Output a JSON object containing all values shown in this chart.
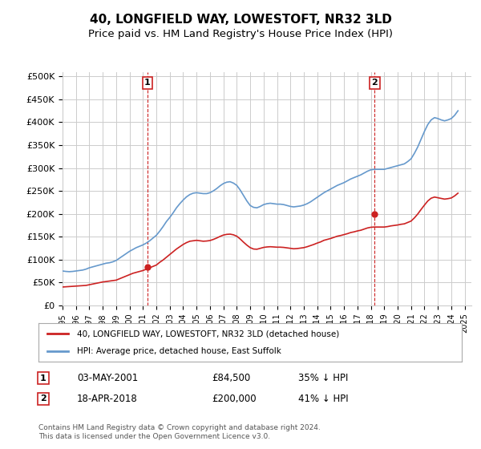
{
  "title": "40, LONGFIELD WAY, LOWESTOFT, NR32 3LD",
  "subtitle": "Price paid vs. HM Land Registry's House Price Index (HPI)",
  "title_fontsize": 11,
  "subtitle_fontsize": 9.5,
  "ylabel_ticks": [
    "£0",
    "£50K",
    "£100K",
    "£150K",
    "£200K",
    "£250K",
    "£300K",
    "£350K",
    "£400K",
    "£450K",
    "£500K"
  ],
  "ytick_values": [
    0,
    50000,
    100000,
    150000,
    200000,
    250000,
    300000,
    350000,
    400000,
    450000,
    500000
  ],
  "ylim": [
    0,
    510000
  ],
  "xlim_start": 1995.0,
  "xlim_end": 2025.5,
  "hpi_color": "#6699cc",
  "price_color": "#cc2222",
  "dashed_color": "#cc2222",
  "bg_color": "#ffffff",
  "grid_color": "#cccccc",
  "marker1_x": 2001.34,
  "marker1_y": 84500,
  "marker2_x": 2018.29,
  "marker2_y": 200000,
  "legend_label1": "40, LONGFIELD WAY, LOWESTOFT, NR32 3LD (detached house)",
  "legend_label2": "HPI: Average price, detached house, East Suffolk",
  "annotation1_label": "1",
  "annotation2_label": "2",
  "table_row1": [
    "1",
    "03-MAY-2001",
    "£84,500",
    "35% ↓ HPI"
  ],
  "table_row2": [
    "2",
    "18-APR-2018",
    "£200,000",
    "41% ↓ HPI"
  ],
  "footer": "Contains HM Land Registry data © Crown copyright and database right 2024.\nThis data is licensed under the Open Government Licence v3.0.",
  "hpi_data": {
    "years": [
      1995.0,
      1995.25,
      1995.5,
      1995.75,
      1996.0,
      1996.25,
      1996.5,
      1996.75,
      1997.0,
      1997.25,
      1997.5,
      1997.75,
      1998.0,
      1998.25,
      1998.5,
      1998.75,
      1999.0,
      1999.25,
      1999.5,
      1999.75,
      2000.0,
      2000.25,
      2000.5,
      2000.75,
      2001.0,
      2001.25,
      2001.5,
      2001.75,
      2002.0,
      2002.25,
      2002.5,
      2002.75,
      2003.0,
      2003.25,
      2003.5,
      2003.75,
      2004.0,
      2004.25,
      2004.5,
      2004.75,
      2005.0,
      2005.25,
      2005.5,
      2005.75,
      2006.0,
      2006.25,
      2006.5,
      2006.75,
      2007.0,
      2007.25,
      2007.5,
      2007.75,
      2008.0,
      2008.25,
      2008.5,
      2008.75,
      2009.0,
      2009.25,
      2009.5,
      2009.75,
      2010.0,
      2010.25,
      2010.5,
      2010.75,
      2011.0,
      2011.25,
      2011.5,
      2011.75,
      2012.0,
      2012.25,
      2012.5,
      2012.75,
      2013.0,
      2013.25,
      2013.5,
      2013.75,
      2014.0,
      2014.25,
      2014.5,
      2014.75,
      2015.0,
      2015.25,
      2015.5,
      2015.75,
      2016.0,
      2016.25,
      2016.5,
      2016.75,
      2017.0,
      2017.25,
      2017.5,
      2017.75,
      2018.0,
      2018.25,
      2018.5,
      2018.75,
      2019.0,
      2019.25,
      2019.5,
      2019.75,
      2020.0,
      2020.25,
      2020.5,
      2020.75,
      2021.0,
      2021.25,
      2021.5,
      2021.75,
      2022.0,
      2022.25,
      2022.5,
      2022.75,
      2023.0,
      2023.25,
      2023.5,
      2023.75,
      2024.0,
      2024.25,
      2024.5
    ],
    "values": [
      75000,
      74000,
      73500,
      74000,
      75000,
      76000,
      77000,
      79000,
      82000,
      84000,
      86000,
      88000,
      90000,
      92000,
      93000,
      95000,
      98000,
      103000,
      108000,
      113000,
      118000,
      122000,
      126000,
      129000,
      132000,
      136000,
      141000,
      147000,
      153000,
      162000,
      172000,
      183000,
      192000,
      202000,
      213000,
      222000,
      230000,
      237000,
      242000,
      245000,
      246000,
      245000,
      244000,
      244000,
      246000,
      250000,
      255000,
      261000,
      266000,
      269000,
      270000,
      267000,
      262000,
      252000,
      240000,
      228000,
      218000,
      214000,
      213000,
      216000,
      220000,
      222000,
      223000,
      222000,
      221000,
      221000,
      220000,
      218000,
      216000,
      215000,
      216000,
      217000,
      219000,
      222000,
      226000,
      231000,
      236000,
      241000,
      246000,
      250000,
      254000,
      258000,
      262000,
      265000,
      268000,
      272000,
      276000,
      279000,
      282000,
      285000,
      289000,
      293000,
      296000,
      297000,
      297000,
      297000,
      297000,
      299000,
      301000,
      303000,
      305000,
      307000,
      309000,
      314000,
      320000,
      332000,
      346000,
      363000,
      380000,
      395000,
      405000,
      410000,
      408000,
      405000,
      403000,
      405000,
      408000,
      415000,
      425000
    ]
  },
  "price_data": {
    "years": [
      1995.0,
      1995.25,
      1995.5,
      1995.75,
      1996.0,
      1996.25,
      1996.5,
      1996.75,
      1997.0,
      1997.25,
      1997.5,
      1997.75,
      1998.0,
      1998.25,
      1998.5,
      1998.75,
      1999.0,
      1999.25,
      1999.5,
      1999.75,
      2000.0,
      2000.25,
      2000.5,
      2000.75,
      2001.0,
      2001.25,
      2001.5,
      2001.75,
      2002.0,
      2002.25,
      2002.5,
      2002.75,
      2003.0,
      2003.25,
      2003.5,
      2003.75,
      2004.0,
      2004.25,
      2004.5,
      2004.75,
      2005.0,
      2005.25,
      2005.5,
      2005.75,
      2006.0,
      2006.25,
      2006.5,
      2006.75,
      2007.0,
      2007.25,
      2007.5,
      2007.75,
      2008.0,
      2008.25,
      2008.5,
      2008.75,
      2009.0,
      2009.25,
      2009.5,
      2009.75,
      2010.0,
      2010.25,
      2010.5,
      2010.75,
      2011.0,
      2011.25,
      2011.5,
      2011.75,
      2012.0,
      2012.25,
      2012.5,
      2012.75,
      2013.0,
      2013.25,
      2013.5,
      2013.75,
      2014.0,
      2014.25,
      2014.5,
      2014.75,
      2015.0,
      2015.25,
      2015.5,
      2015.75,
      2016.0,
      2016.25,
      2016.5,
      2016.75,
      2017.0,
      2017.25,
      2017.5,
      2017.75,
      2018.0,
      2018.25,
      2018.5,
      2018.75,
      2019.0,
      2019.25,
      2019.5,
      2019.75,
      2020.0,
      2020.25,
      2020.5,
      2020.75,
      2021.0,
      2021.25,
      2021.5,
      2021.75,
      2022.0,
      2022.25,
      2022.5,
      2022.75,
      2023.0,
      2023.25,
      2023.5,
      2023.75,
      2024.0,
      2024.25,
      2024.5
    ],
    "values": [
      40000,
      40500,
      41000,
      41500,
      42000,
      42500,
      43000,
      43500,
      45000,
      46500,
      48000,
      49500,
      51000,
      52000,
      53000,
      54000,
      55000,
      58000,
      61000,
      64000,
      67000,
      70000,
      72000,
      74000,
      76000,
      79000,
      82000,
      85000,
      88000,
      94000,
      99000,
      105000,
      111000,
      117000,
      123000,
      128000,
      133000,
      137000,
      140000,
      141000,
      142000,
      141000,
      140000,
      140500,
      141500,
      144000,
      147000,
      150500,
      153500,
      155000,
      155500,
      154000,
      151000,
      145000,
      138000,
      131500,
      126000,
      123000,
      122500,
      124500,
      126500,
      127500,
      128000,
      127500,
      127000,
      127000,
      126500,
      125500,
      124500,
      123500,
      124000,
      125000,
      126000,
      128000,
      130500,
      133000,
      136000,
      138500,
      142000,
      144000,
      146000,
      148500,
      151000,
      152500,
      154500,
      156500,
      159000,
      160500,
      162500,
      164000,
      166500,
      169000,
      170500,
      171000,
      171000,
      171000,
      171000,
      172000,
      173500,
      174500,
      175500,
      177000,
      178000,
      181000,
      184000,
      191000,
      199500,
      209500,
      219000,
      228000,
      234000,
      236500,
      235000,
      233500,
      232000,
      233000,
      234500,
      239000,
      245000
    ]
  }
}
